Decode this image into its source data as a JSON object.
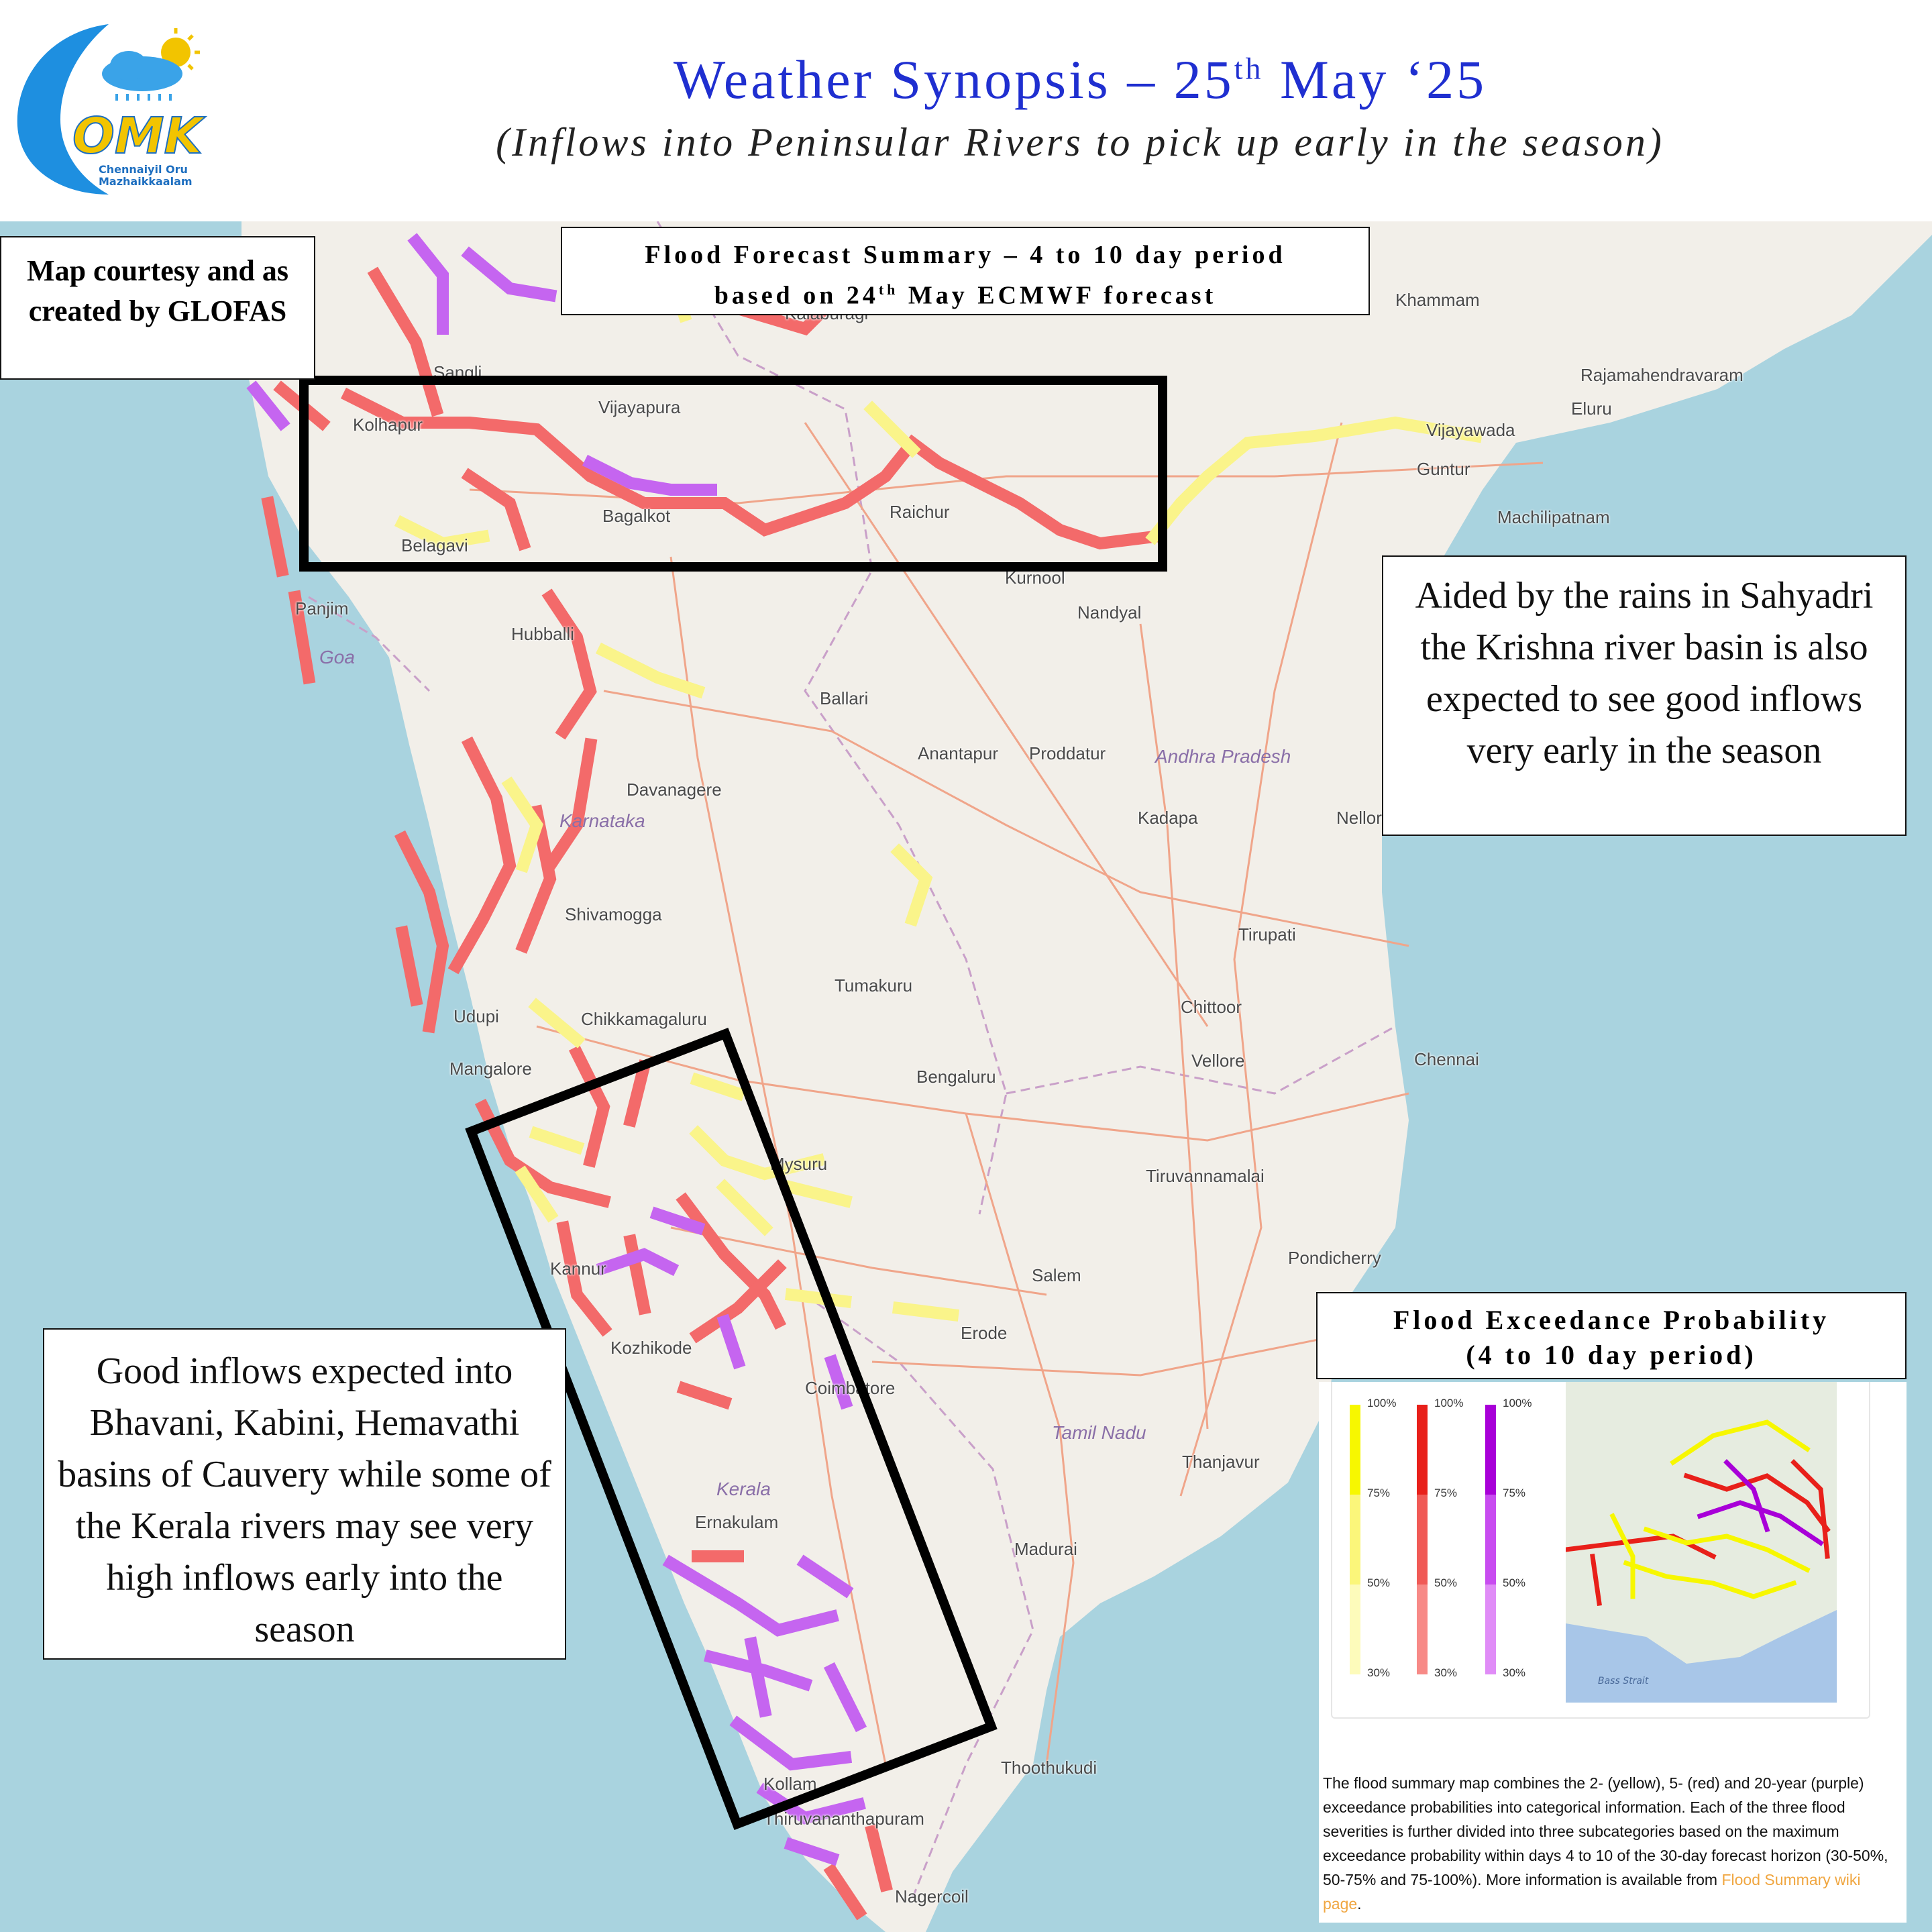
{
  "header": {
    "title_main": "Weather Synopsis – 25",
    "title_sup": "th",
    "title_end": " May ‘25",
    "subtitle": "(Inflows into  Peninsular Rivers to pick up early in the season)",
    "logo": {
      "letters": "OMK",
      "line1": "Chennaiyil Oru",
      "line2": "Mazhaikkaalam",
      "icon": "cloud-sun-rain-icon"
    }
  },
  "credit_box": {
    "text": "Map courtesy and as created by GLOFAS"
  },
  "forecast_box": {
    "line1": "Flood Forecast Summary – 4 to 10 day period",
    "line2_pre": "based on 24",
    "line2_sup": "th",
    "line2_post": " May ECMWF forecast"
  },
  "note_krishna": {
    "text": "Aided by the rains in Sahyadri the Krishna river basin is also expected to see good inflows very early in the season"
  },
  "note_cauvery": {
    "text": "Good inflows expected into Bhavani, Kabini, Hemavathi basins of Cauvery while some of the Kerala rivers may see very high inflows early into the season"
  },
  "legend": {
    "title_line1": "Flood Exceedance Probability",
    "title_line2": "(4 to 10 day period)",
    "ticks": [
      "100%",
      "75%",
      "50%",
      "30%"
    ],
    "colors": {
      "yellow": "#f7f700",
      "red": "#e8201a",
      "purple": "#a800d8"
    },
    "description": "The flood summary map combines the 2- (yellow), 5- (red) and 20-year (purple) exceedance probabilities into categorical information. Each of the three flood severities is further divided into three subcategories based on the maximum exceedance probability within days 4 to 10 of the 30-day forecast horizon (30-50%, 50-75% and 75-100%). More information is available from ",
    "link_text": "Flood Summary wiki page",
    "thumb_labels": [
      "Bass Strait"
    ]
  },
  "places": [
    "Khammam",
    "Kalaburagi",
    "Rajamahendravaram",
    "Eluru",
    "Vijayawada",
    "Guntur",
    "Machilipatnam",
    "Kolhapur",
    "Vijayapura",
    "Bagalkot",
    "Raichur",
    "Belagavi",
    "Kurnool",
    "Nandyal",
    "Panjim",
    "Hubballi",
    "Ballari",
    "Anantapur",
    "Proddatur",
    "Kadapa",
    "Nellore",
    "Davanagere",
    "Shivamogga",
    "Tirupati",
    "Tumakuru",
    "Udupi",
    "Chikkamagaluru",
    "Chittoor",
    "Mangalore",
    "Vellore",
    "Bengaluru",
    "Chennai",
    "Mysuru",
    "Tiruvannamalai",
    "Kannur",
    "Salem",
    "Pondicherry",
    "Kozhikode",
    "Erode",
    "Coimbatore",
    "Thanjavur",
    "Ernakulam",
    "Madurai",
    "Kollam",
    "Thoothukudi",
    "Thiruvananthapuram",
    "Nagercoil",
    "Sangli"
  ],
  "states": [
    "Goa",
    "Andhra Pradesh",
    "Karnataka",
    "Tamil Nadu",
    "Kerala"
  ]
}
